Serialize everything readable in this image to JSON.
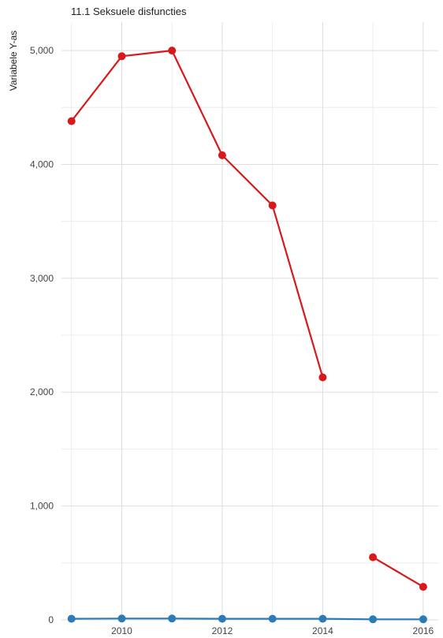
{
  "chart_data": {
    "type": "line",
    "title": "11.1 Seksuele disfuncties",
    "ylabel": "Variabele Y-as",
    "xlabel": "",
    "xlim": [
      2008.8,
      2016.3
    ],
    "ylim": [
      0,
      5250
    ],
    "x_ticks": [
      2010,
      2012,
      2014,
      2016
    ],
    "x_tick_labels": [
      "2010",
      "2012",
      "2014",
      "2016"
    ],
    "x_minor_ticks": [
      2009,
      2011,
      2013,
      2015
    ],
    "y_ticks": [
      0,
      1000,
      2000,
      3000,
      4000,
      5000
    ],
    "y_tick_labels": [
      "0",
      "1,000",
      "2,000",
      "3,000",
      "4,000",
      "5,000"
    ],
    "y_minor_ticks": [
      500,
      1500,
      2500,
      3500,
      4500
    ],
    "grid": true,
    "legend": "none",
    "series": [
      {
        "color": "#d7191c",
        "segments": [
          [
            [
              2009,
              4380
            ],
            [
              2010,
              4950
            ],
            [
              2011,
              5000
            ],
            [
              2012,
              4080
            ],
            [
              2013,
              3640
            ],
            [
              2014,
              2130
            ]
          ],
          [
            [
              2015,
              550
            ],
            [
              2016,
              290
            ]
          ]
        ]
      },
      {
        "color": "#2c7bb6",
        "segments": [
          [
            [
              2009,
              10
            ],
            [
              2010,
              12
            ],
            [
              2011,
              12
            ],
            [
              2012,
              10
            ],
            [
              2013,
              10
            ],
            [
              2014,
              10
            ],
            [
              2015,
              5
            ],
            [
              2016,
              5
            ]
          ]
        ]
      }
    ]
  }
}
